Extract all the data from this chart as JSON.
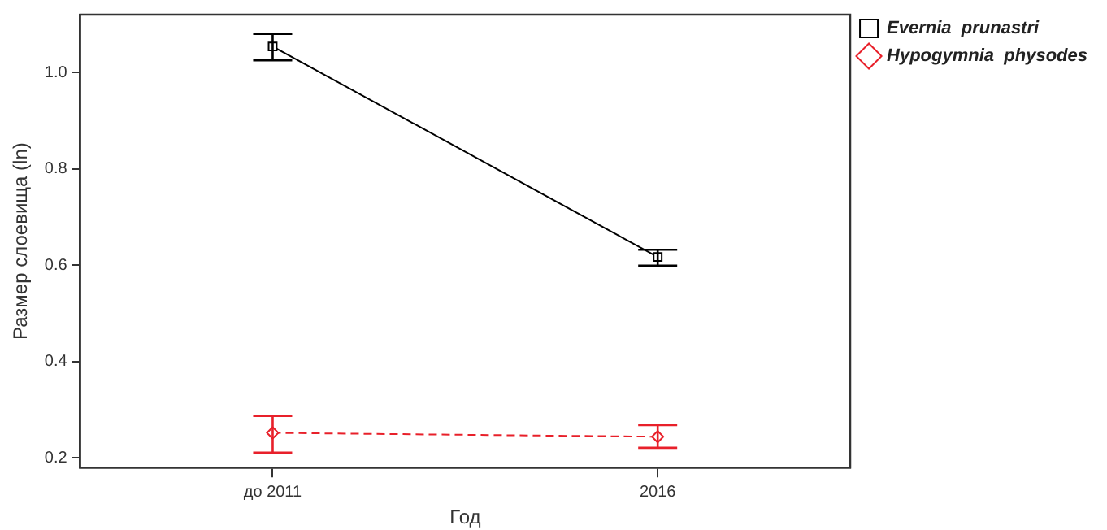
{
  "chart_data": {
    "type": "line",
    "xlabel": "Год",
    "ylabel": "Размер слоевища (ln)",
    "categories": [
      "до 2011",
      "2016"
    ],
    "series": [
      {
        "name": "Evernia  prunastri",
        "color": "#000000",
        "values": [
          1.054,
          0.617
        ],
        "errors": [
          [
            1.025,
            1.08
          ],
          [
            0.599,
            0.632
          ]
        ],
        "marker": "square",
        "line_style": "solid"
      },
      {
        "name": "Hypogymnia  physodes",
        "color": "#e8202a",
        "values": [
          0.252,
          0.244
        ],
        "errors": [
          [
            0.211,
            0.287
          ],
          [
            0.221,
            0.268
          ]
        ],
        "marker": "diamond",
        "line_style": "dashed"
      }
    ],
    "ylim": [
      0.18,
      1.12
    ],
    "yticks": [
      0.2,
      0.4,
      0.6,
      0.8,
      {
        "value": 1,
        "label": "1.0"
      }
    ],
    "grid": false,
    "legend": "right"
  }
}
